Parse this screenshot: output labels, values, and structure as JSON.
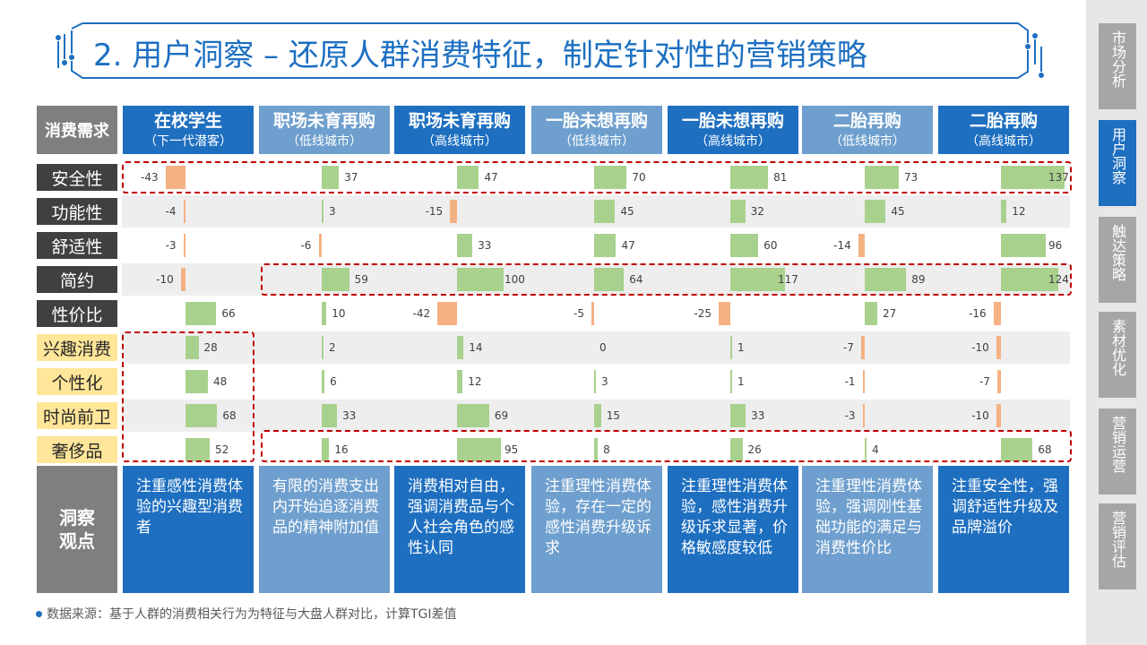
{
  "title": "2. 用户洞察 – 还原人群消费特征，制定针对性的营销策略",
  "nav": [
    {
      "label": "市场分析",
      "active": false
    },
    {
      "label": "用户洞察",
      "active": true
    },
    {
      "label": "触达策略",
      "active": false
    },
    {
      "label": "素材优化",
      "active": false
    },
    {
      "label": "营销运营",
      "active": false
    },
    {
      "label": "营销评估",
      "active": false
    }
  ],
  "header_label": "消费需求",
  "insight_label": "洞察观点",
  "colors": {
    "blue_dark": "#1e6fc0",
    "blue_light": "#6e9fce",
    "positive": "#a9d18e",
    "negative": "#f4b183",
    "dashed": "#c00000"
  },
  "chart_data": {
    "type": "table",
    "title": "2. 用户洞察 – 还原人群消费特征，制定针对性的营销策略",
    "metric": "TGI差值",
    "columns": [
      {
        "name": "在校学生",
        "sub": "（下一代潜客）"
      },
      {
        "name": "职场未育再购",
        "sub": "（低线城市）"
      },
      {
        "name": "职场未育再购",
        "sub": "（高线城市）"
      },
      {
        "name": "一胎未想再购",
        "sub": "（低线城市）"
      },
      {
        "name": "一胎未想再购",
        "sub": "（高线城市）"
      },
      {
        "name": "二胎再购",
        "sub": "（低线城市）"
      },
      {
        "name": "二胎再购",
        "sub": "（高线城市）"
      }
    ],
    "rows": [
      {
        "label": "安全性",
        "style": "dark",
        "values": [
          -43,
          37,
          47,
          70,
          81,
          73,
          137
        ]
      },
      {
        "label": "功能性",
        "style": "dark",
        "values": [
          -4,
          3,
          -15,
          45,
          32,
          45,
          12
        ]
      },
      {
        "label": "舒适性",
        "style": "dark",
        "values": [
          -3,
          -6,
          33,
          47,
          60,
          -14,
          96
        ]
      },
      {
        "label": "简约",
        "style": "dark",
        "values": [
          -10,
          59,
          100,
          64,
          117,
          89,
          124
        ]
      },
      {
        "label": "性价比",
        "style": "dark",
        "values": [
          66,
          10,
          -42,
          -5,
          -25,
          27,
          -16
        ]
      },
      {
        "label": "兴趣消费",
        "style": "yellow",
        "values": [
          28,
          2,
          14,
          0,
          1,
          -7,
          -10
        ]
      },
      {
        "label": "个性化",
        "style": "yellow",
        "values": [
          48,
          6,
          12,
          3,
          1,
          -1,
          -7
        ]
      },
      {
        "label": "时尚前卫",
        "style": "yellow",
        "values": [
          68,
          33,
          69,
          15,
          33,
          -3,
          -10
        ]
      },
      {
        "label": "奢侈品",
        "style": "yellow",
        "values": [
          52,
          16,
          95,
          8,
          26,
          4,
          68
        ]
      }
    ],
    "insights": [
      "注重感性消费体验的兴趣型消费者",
      "有限的消费支出内开始追逐消费品的精神附加值",
      "消费相对自由，强调消费品与个人社会角色的感性认同",
      "注重理性消费体验，存在一定的感性消费升级诉求",
      "注重理性消费体验，感性消费升级诉求显著，价格敏感度较低",
      "注重理性消费体验，强调刚性基础功能的满足与消费性价比",
      "注重安全性，强调舒适性升级及品牌溢价"
    ]
  },
  "footnote": "数据来源：基于人群的消费相关行为为特征与大盘人群对比，计算TGI差值"
}
